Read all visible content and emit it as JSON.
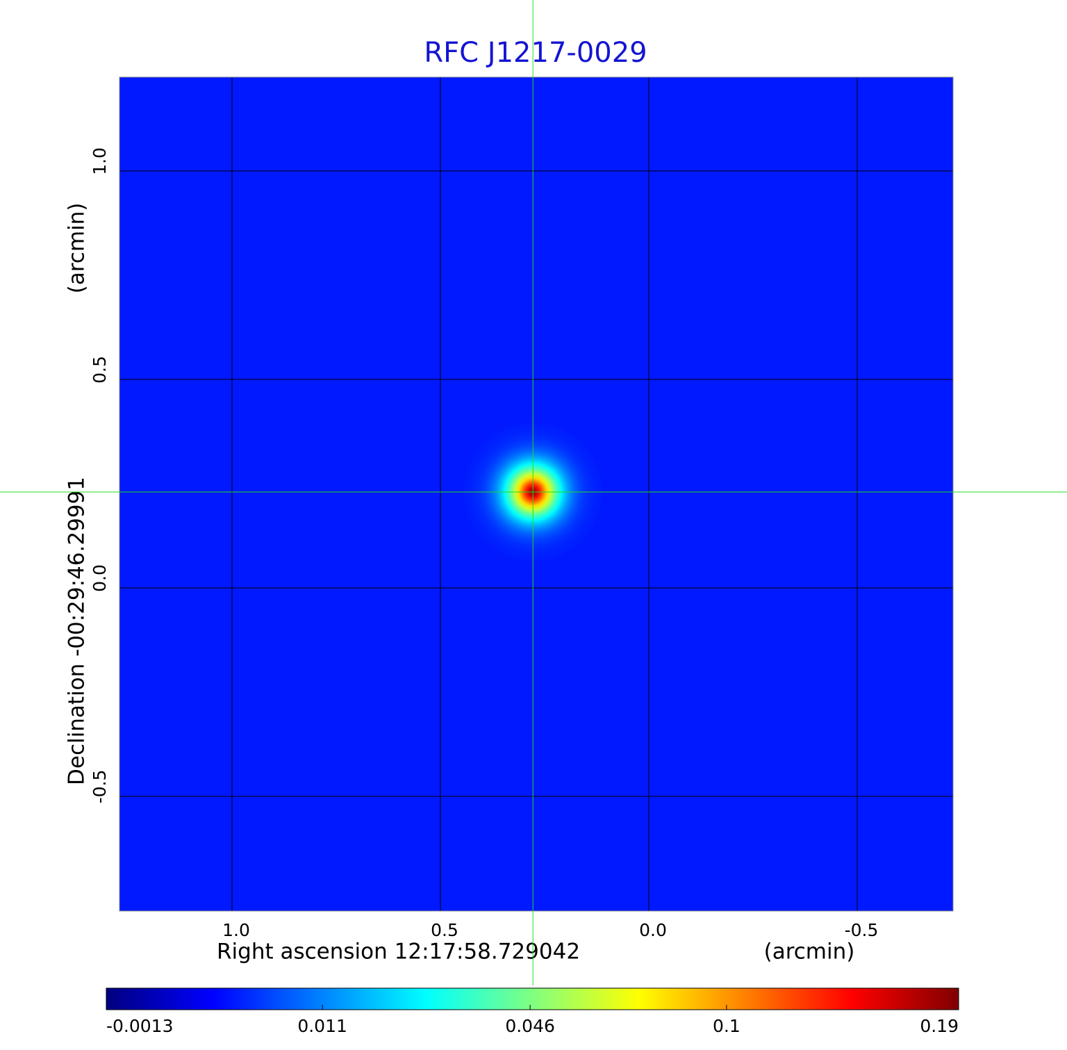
{
  "chart_data": {
    "type": "image",
    "title": "RFC J1217-0029",
    "x_label": "Right ascension  12:17:58.729042",
    "x_unit": "(arcmin)",
    "y_label": "Declination  -00:29:46.29991",
    "y_unit": "(arcmin)",
    "xlim": [
      1.27,
      -0.73
    ],
    "ylim": [
      -0.775,
      1.225
    ],
    "xticks": [
      {
        "value": 1,
        "label": "1.0"
      },
      0.5,
      {
        "value": 0,
        "label": "0.0"
      },
      -0.5
    ],
    "yticks": [
      {
        "value": 1,
        "label": "1.0"
      },
      0.5,
      {
        "value": 0,
        "label": "0.0"
      },
      -0.5
    ],
    "grid": true,
    "background": 0.003,
    "source": {
      "x": 0.278,
      "y": 0.23,
      "peak": 0.19,
      "radius": 0.17
    },
    "colorbar": {
      "scale": "sqrt",
      "lim": [
        -0.0013,
        0.19
      ],
      "ticks": [
        -0.0013,
        0.011,
        0.046,
        0.1,
        0.19
      ],
      "colormap": "jet"
    }
  }
}
